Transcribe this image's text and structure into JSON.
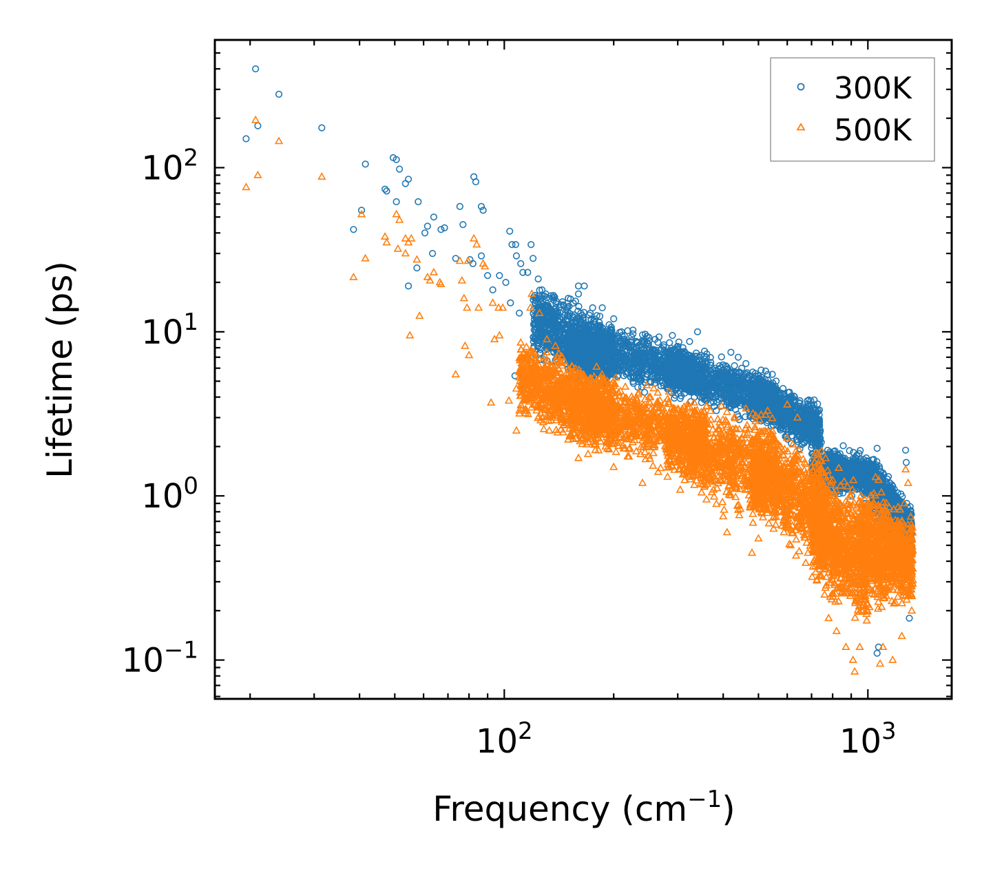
{
  "chart_data": {
    "type": "scatter",
    "xscale": "log",
    "yscale": "log",
    "xlabel": "Frequency (cm",
    "xlabel_sup": "−1",
    "xlabel_close": ")",
    "ylabel": "Lifetime (ps)",
    "xlim": [
      16,
      1700
    ],
    "ylim": [
      0.058,
      600
    ],
    "xticks": [
      {
        "value": 100,
        "base": "10",
        "exp": "2"
      },
      {
        "value": 1000,
        "base": "10",
        "exp": "3"
      }
    ],
    "yticks": [
      {
        "value": 0.1,
        "base": "10",
        "exp": "−1"
      },
      {
        "value": 1,
        "base": "10",
        "exp": "0"
      },
      {
        "value": 10,
        "base": "10",
        "exp": "1"
      },
      {
        "value": 100,
        "base": "10",
        "exp": "2"
      }
    ],
    "legend": {
      "position": "top-right"
    },
    "series": [
      {
        "name": "300K",
        "marker": "circle",
        "color": "#1f77b4",
        "scale": 1.0,
        "points": [
          [
            20.7,
            400
          ],
          [
            24,
            280
          ],
          [
            21,
            180
          ],
          [
            19.5,
            150
          ],
          [
            31.5,
            175
          ],
          [
            41.5,
            105
          ],
          [
            49.5,
            115
          ],
          [
            50.5,
            112
          ],
          [
            51.5,
            98
          ],
          [
            53.5,
            80
          ],
          [
            54.5,
            85
          ],
          [
            47,
            74
          ],
          [
            47.5,
            72
          ],
          [
            40.5,
            55
          ],
          [
            38.5,
            42
          ],
          [
            50.5,
            62
          ],
          [
            58,
            62
          ],
          [
            64,
            50
          ],
          [
            61.5,
            44
          ],
          [
            67,
            42
          ],
          [
            68.5,
            43
          ],
          [
            63.5,
            30
          ],
          [
            60.5,
            40
          ],
          [
            57.5,
            24.5
          ],
          [
            54.5,
            19
          ],
          [
            82.5,
            88
          ],
          [
            83.5,
            82
          ],
          [
            86.5,
            58
          ],
          [
            87.5,
            55
          ],
          [
            75.5,
            58
          ],
          [
            77,
            45
          ],
          [
            73.5,
            28
          ],
          [
            80.5,
            27.5
          ],
          [
            82,
            26
          ],
          [
            86.5,
            29
          ],
          [
            90,
            22
          ],
          [
            93,
            18
          ],
          [
            97,
            22
          ],
          [
            101,
            20
          ],
          [
            103.5,
            41
          ],
          [
            105,
            34
          ],
          [
            107.5,
            34
          ],
          [
            108,
            29
          ],
          [
            111,
            26
          ],
          [
            112.5,
            23
          ],
          [
            116,
            23
          ],
          [
            118.5,
            34
          ],
          [
            120,
            28
          ],
          [
            124,
            21
          ],
          [
            123,
            16
          ],
          [
            127,
            18
          ],
          [
            130,
            17
          ],
          [
            104,
            15
          ],
          [
            110,
            13
          ],
          [
            107,
            5.4
          ],
          [
            112,
            5.2
          ],
          [
            160,
            19
          ],
          [
            166,
            19
          ],
          [
            175,
            14
          ],
          [
            186,
            14
          ],
          [
            160,
            17
          ],
          [
            150,
            16
          ],
          [
            290,
            9.5
          ],
          [
            340,
            10
          ],
          [
            420,
            7.5
          ],
          [
            440,
            7
          ],
          [
            530,
            5.5
          ],
          [
            650,
            3.8
          ],
          [
            700,
            3
          ],
          [
            640,
            2.2
          ],
          [
            810,
            1.8
          ],
          [
            900,
            1.5
          ],
          [
            1060,
            1.95
          ],
          [
            1270,
            1.9
          ],
          [
            1275,
            1.6
          ],
          [
            1070,
            0.12
          ],
          [
            1060,
            0.11
          ],
          [
            1310,
            0.75
          ],
          [
            1280,
            0.9
          ],
          [
            1300,
            0.18
          ],
          [
            1230,
            0.55
          ],
          [
            1160,
            1.1
          ],
          [
            1110,
            0.85
          ],
          [
            980,
            0.9
          ],
          [
            950,
            1.2
          ],
          [
            200,
            12
          ],
          [
            230,
            8
          ],
          [
            250,
            7
          ],
          [
            270,
            6
          ],
          [
            310,
            8
          ],
          [
            360,
            7
          ],
          [
            380,
            6
          ],
          [
            450,
            6
          ],
          [
            480,
            5
          ],
          [
            560,
            4.5
          ],
          [
            590,
            4
          ],
          [
            620,
            3.5
          ],
          [
            740,
            2.5
          ],
          [
            760,
            1.8
          ],
          [
            860,
            1.3
          ],
          [
            130,
            10
          ],
          [
            140,
            9
          ],
          [
            145,
            7
          ],
          [
            155,
            6
          ],
          [
            135,
            8
          ],
          [
            170,
            11
          ],
          [
            190,
            9
          ],
          [
            210,
            10
          ],
          [
            260,
            9
          ],
          [
            280,
            5
          ]
        ],
        "bands": [
          {
            "xmin": 120,
            "xmax": 200,
            "ylo_a": 6.0,
            "yhi_a": 22,
            "ylo_b": 4.0,
            "yhi_b": 13
          },
          {
            "xmin": 150,
            "xmax": 330,
            "ylo_a": 5.0,
            "yhi_a": 13,
            "ylo_b": 3.5,
            "yhi_b": 9.5
          },
          {
            "xmin": 280,
            "xmax": 560,
            "ylo_a": 3.8,
            "yhi_a": 9.5,
            "ylo_b": 2.3,
            "yhi_b": 6.0
          },
          {
            "xmin": 480,
            "xmax": 740,
            "ylo_a": 2.8,
            "yhi_a": 6.0,
            "ylo_b": 1.6,
            "yhi_b": 3.9
          },
          {
            "xmin": 700,
            "xmax": 1060,
            "ylo_a": 1.0,
            "yhi_a": 2.2,
            "ylo_b": 0.9,
            "yhi_b": 1.9
          },
          {
            "xmin": 1030,
            "xmax": 1320,
            "ylo_a": 0.7,
            "yhi_a": 1.8,
            "ylo_b": 0.35,
            "yhi_b": 0.95
          }
        ]
      },
      {
        "name": "500K",
        "marker": "triangle",
        "color": "#ff7f0e",
        "scale": 1.0,
        "points": [
          [
            20.7,
            195
          ],
          [
            24,
            145
          ],
          [
            19.5,
            76
          ],
          [
            21,
            90
          ],
          [
            31.5,
            88
          ],
          [
            40.5,
            52
          ],
          [
            41.5,
            28
          ],
          [
            38.5,
            21.5
          ],
          [
            47,
            38
          ],
          [
            47.5,
            35
          ],
          [
            50.5,
            52
          ],
          [
            51.5,
            48
          ],
          [
            53.5,
            37
          ],
          [
            54.5,
            35
          ],
          [
            55.5,
            37
          ],
          [
            51,
            32
          ],
          [
            53.5,
            30
          ],
          [
            57.5,
            27.5
          ],
          [
            61.5,
            21.5
          ],
          [
            62.5,
            20.5
          ],
          [
            64,
            23
          ],
          [
            66.5,
            20
          ],
          [
            67,
            19.5
          ],
          [
            58.5,
            12.5
          ],
          [
            55,
            9.5
          ],
          [
            75.5,
            27
          ],
          [
            79.5,
            27
          ],
          [
            82.5,
            37
          ],
          [
            84,
            34
          ],
          [
            87.5,
            26
          ],
          [
            88.5,
            25
          ],
          [
            76.5,
            20.5
          ],
          [
            77.5,
            16
          ],
          [
            79,
            14
          ],
          [
            85,
            14
          ],
          [
            93,
            15
          ],
          [
            96.5,
            14
          ],
          [
            99,
            14
          ],
          [
            94,
            9
          ],
          [
            97,
            9.5
          ],
          [
            80,
            7.2
          ],
          [
            78,
            8.2
          ],
          [
            73.5,
            5.5
          ],
          [
            92,
            3.7
          ],
          [
            103,
            3.8
          ],
          [
            108,
            4.5
          ],
          [
            111,
            3.4
          ],
          [
            108,
            2.5
          ],
          [
            119,
            17
          ],
          [
            118,
            14
          ],
          [
            125,
            13
          ],
          [
            131,
            9
          ],
          [
            121,
            4.5
          ],
          [
            130,
            3.4
          ],
          [
            133,
            2.5
          ],
          [
            150,
            2.2
          ],
          [
            160,
            1.7
          ],
          [
            170,
            1.8
          ],
          [
            178,
            1.9
          ],
          [
            190,
            2.0
          ],
          [
            200,
            1.5
          ],
          [
            240,
            1.2
          ],
          [
            265,
            1.4
          ],
          [
            310,
            1.35
          ],
          [
            360,
            0.95
          ],
          [
            410,
            0.6
          ],
          [
            400,
            0.75
          ],
          [
            480,
            0.45
          ],
          [
            500,
            0.55
          ],
          [
            560,
            0.9
          ],
          [
            530,
            3.3
          ],
          [
            600,
            3.6
          ],
          [
            640,
            3.0
          ],
          [
            700,
            1.5
          ],
          [
            760,
            1.0
          ],
          [
            760,
            0.25
          ],
          [
            780,
            0.18
          ],
          [
            820,
            0.15
          ],
          [
            870,
            0.12
          ],
          [
            910,
            0.1
          ],
          [
            920,
            0.085
          ],
          [
            950,
            0.12
          ],
          [
            1010,
            0.21
          ],
          [
            1040,
            0.25
          ],
          [
            1080,
            0.095
          ],
          [
            1100,
            0.12
          ],
          [
            1170,
            0.1
          ],
          [
            1240,
            0.14
          ],
          [
            1260,
            0.9
          ],
          [
            1270,
            1.45
          ],
          [
            1290,
            1.2
          ],
          [
            1310,
            0.6
          ],
          [
            1320,
            0.2
          ],
          [
            1070,
            1.25
          ],
          [
            1050,
            1.3
          ],
          [
            980,
            0.95
          ],
          [
            950,
            0.92
          ],
          [
            400,
            1.8
          ],
          [
            330,
            3.0
          ],
          [
            290,
            2.5
          ]
        ],
        "bands": [
          {
            "xmin": 110,
            "xmax": 200,
            "ylo_a": 2.5,
            "yhi_a": 11,
            "ylo_b": 1.6,
            "yhi_b": 6.2
          },
          {
            "xmin": 150,
            "xmax": 360,
            "ylo_a": 1.8,
            "yhi_a": 6.5,
            "ylo_b": 1.2,
            "yhi_b": 4.5
          },
          {
            "xmin": 280,
            "xmax": 560,
            "ylo_a": 1.0,
            "yhi_a": 4.5,
            "ylo_b": 0.55,
            "yhi_b": 3.6
          },
          {
            "xmin": 480,
            "xmax": 780,
            "ylo_a": 0.6,
            "yhi_a": 3.6,
            "ylo_b": 0.3,
            "yhi_b": 2.0
          },
          {
            "xmin": 700,
            "xmax": 1000,
            "ylo_a": 0.25,
            "yhi_a": 1.8,
            "ylo_b": 0.12,
            "yhi_b": 1.3
          },
          {
            "xmin": 950,
            "xmax": 1330,
            "ylo_a": 0.2,
            "yhi_a": 1.4,
            "ylo_b": 0.18,
            "yhi_b": 0.9
          }
        ]
      }
    ]
  }
}
